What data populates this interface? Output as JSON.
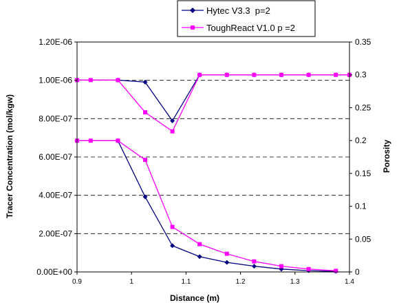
{
  "chart_data": {
    "type": "line",
    "title": "",
    "xlabel": "Distance (m)",
    "ylabel": "Tracer Concentration (mol/kgw)",
    "y2label": "Porosity",
    "xlim": [
      0.9,
      1.4
    ],
    "ylim": [
      0,
      1.2e-06
    ],
    "y2lim": [
      0,
      0.35
    ],
    "x_ticks": [
      "0.9",
      "1",
      "1.1",
      "1.2",
      "1.3",
      "1.4"
    ],
    "y_ticks": [
      "0.00E+00",
      "2.00E-07",
      "4.00E-07",
      "6.00E-07",
      "8.00E-07",
      "1.00E-06",
      "1.20E-06"
    ],
    "y2_ticks": [
      "0",
      "0.05",
      "0.1",
      "0.15",
      "0.2",
      "0.25",
      "0.3",
      "0.35"
    ],
    "grid": "horizontal dashed",
    "legend_position": "top-center",
    "series": [
      {
        "name": "Hytec V3.3  p=2",
        "color": "#000080",
        "marker": "diamond",
        "concentration": {
          "x": [
            0.9,
            0.975,
            1.025,
            1.075,
            1.125,
            1.175,
            1.225,
            1.275,
            1.325,
            1.375
          ],
          "y": [
            6.85e-07,
            6.85e-07,
            3.92e-07,
            1.37e-07,
            8e-08,
            5e-08,
            3e-08,
            1.5e-08,
            7e-09,
            3e-09
          ]
        },
        "porosity": {
          "x": [
            0.9,
            0.975,
            1.025,
            1.075,
            1.125,
            1.175,
            1.225,
            1.275,
            1.325,
            1.375,
            1.4
          ],
          "y": [
            0.292,
            0.292,
            0.289,
            0.23,
            0.3,
            0.3,
            0.3,
            0.3,
            0.3,
            0.3,
            0.3
          ]
        }
      },
      {
        "name": "ToughReact V1.0 p =2",
        "color": "#ff00ff",
        "marker": "square",
        "concentration": {
          "x": [
            0.9,
            0.925,
            0.975,
            1.025,
            1.075,
            1.125,
            1.175,
            1.225,
            1.275,
            1.325,
            1.375
          ],
          "y": [
            6.85e-07,
            6.85e-07,
            6.85e-07,
            5.85e-07,
            2.35e-07,
            1.45e-07,
            9.5e-08,
            5.5e-08,
            3e-08,
            1.5e-08,
            6e-09
          ]
        },
        "porosity": {
          "x": [
            0.9,
            0.925,
            0.975,
            1.025,
            1.075,
            1.125,
            1.175,
            1.225,
            1.275,
            1.325,
            1.375,
            1.4
          ],
          "y": [
            0.292,
            0.292,
            0.292,
            0.243,
            0.214,
            0.3,
            0.3,
            0.3,
            0.3,
            0.3,
            0.3,
            0.3
          ]
        }
      }
    ]
  }
}
